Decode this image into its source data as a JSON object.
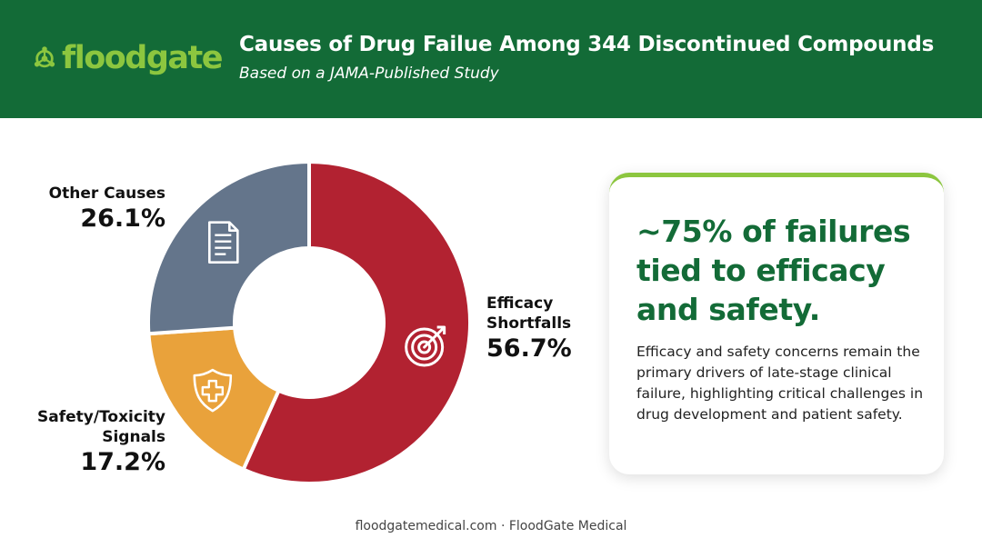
{
  "brand": {
    "name": "floodgate",
    "colors": {
      "primary_green": "#136b37",
      "accent_green": "#8cc63f"
    }
  },
  "header": {
    "title": "Causes of Drug Failue Among 344 Discontinued Compounds",
    "subtitle": "Based on a JAMA-Published Study"
  },
  "chart_data": {
    "type": "pie",
    "title": "Causes of Drug Failue Among 344 Discontinued Compounds",
    "subtitle": "Based on a JAMA-Published Study",
    "slices": [
      {
        "name_lines": [
          "Efficacy",
          "Shortfalls"
        ],
        "value": 56.7,
        "label": "56.7%",
        "color": "#b22231",
        "icon": "target-icon"
      },
      {
        "name_lines": [
          "Safety/Toxicity",
          "Signals"
        ],
        "value": 17.2,
        "label": "17.2%",
        "color": "#e9a23b",
        "icon": "shield-plus-icon"
      },
      {
        "name_lines": [
          "Other Causes"
        ],
        "value": 26.1,
        "label": "26.1%",
        "color": "#64758b",
        "icon": "document-icon"
      }
    ],
    "donut": true,
    "start": "12 o'clock, clockwise"
  },
  "callout": {
    "headline": "~75% of failures tied to efficacy and safety.",
    "body": "Efficacy and safety concerns remain the primary drivers of late-stage clinical failure, highlighting critical challenges in drug development and patient safety."
  },
  "footer": {
    "text": "floodgatemedical.com · FloodGate Medical"
  }
}
